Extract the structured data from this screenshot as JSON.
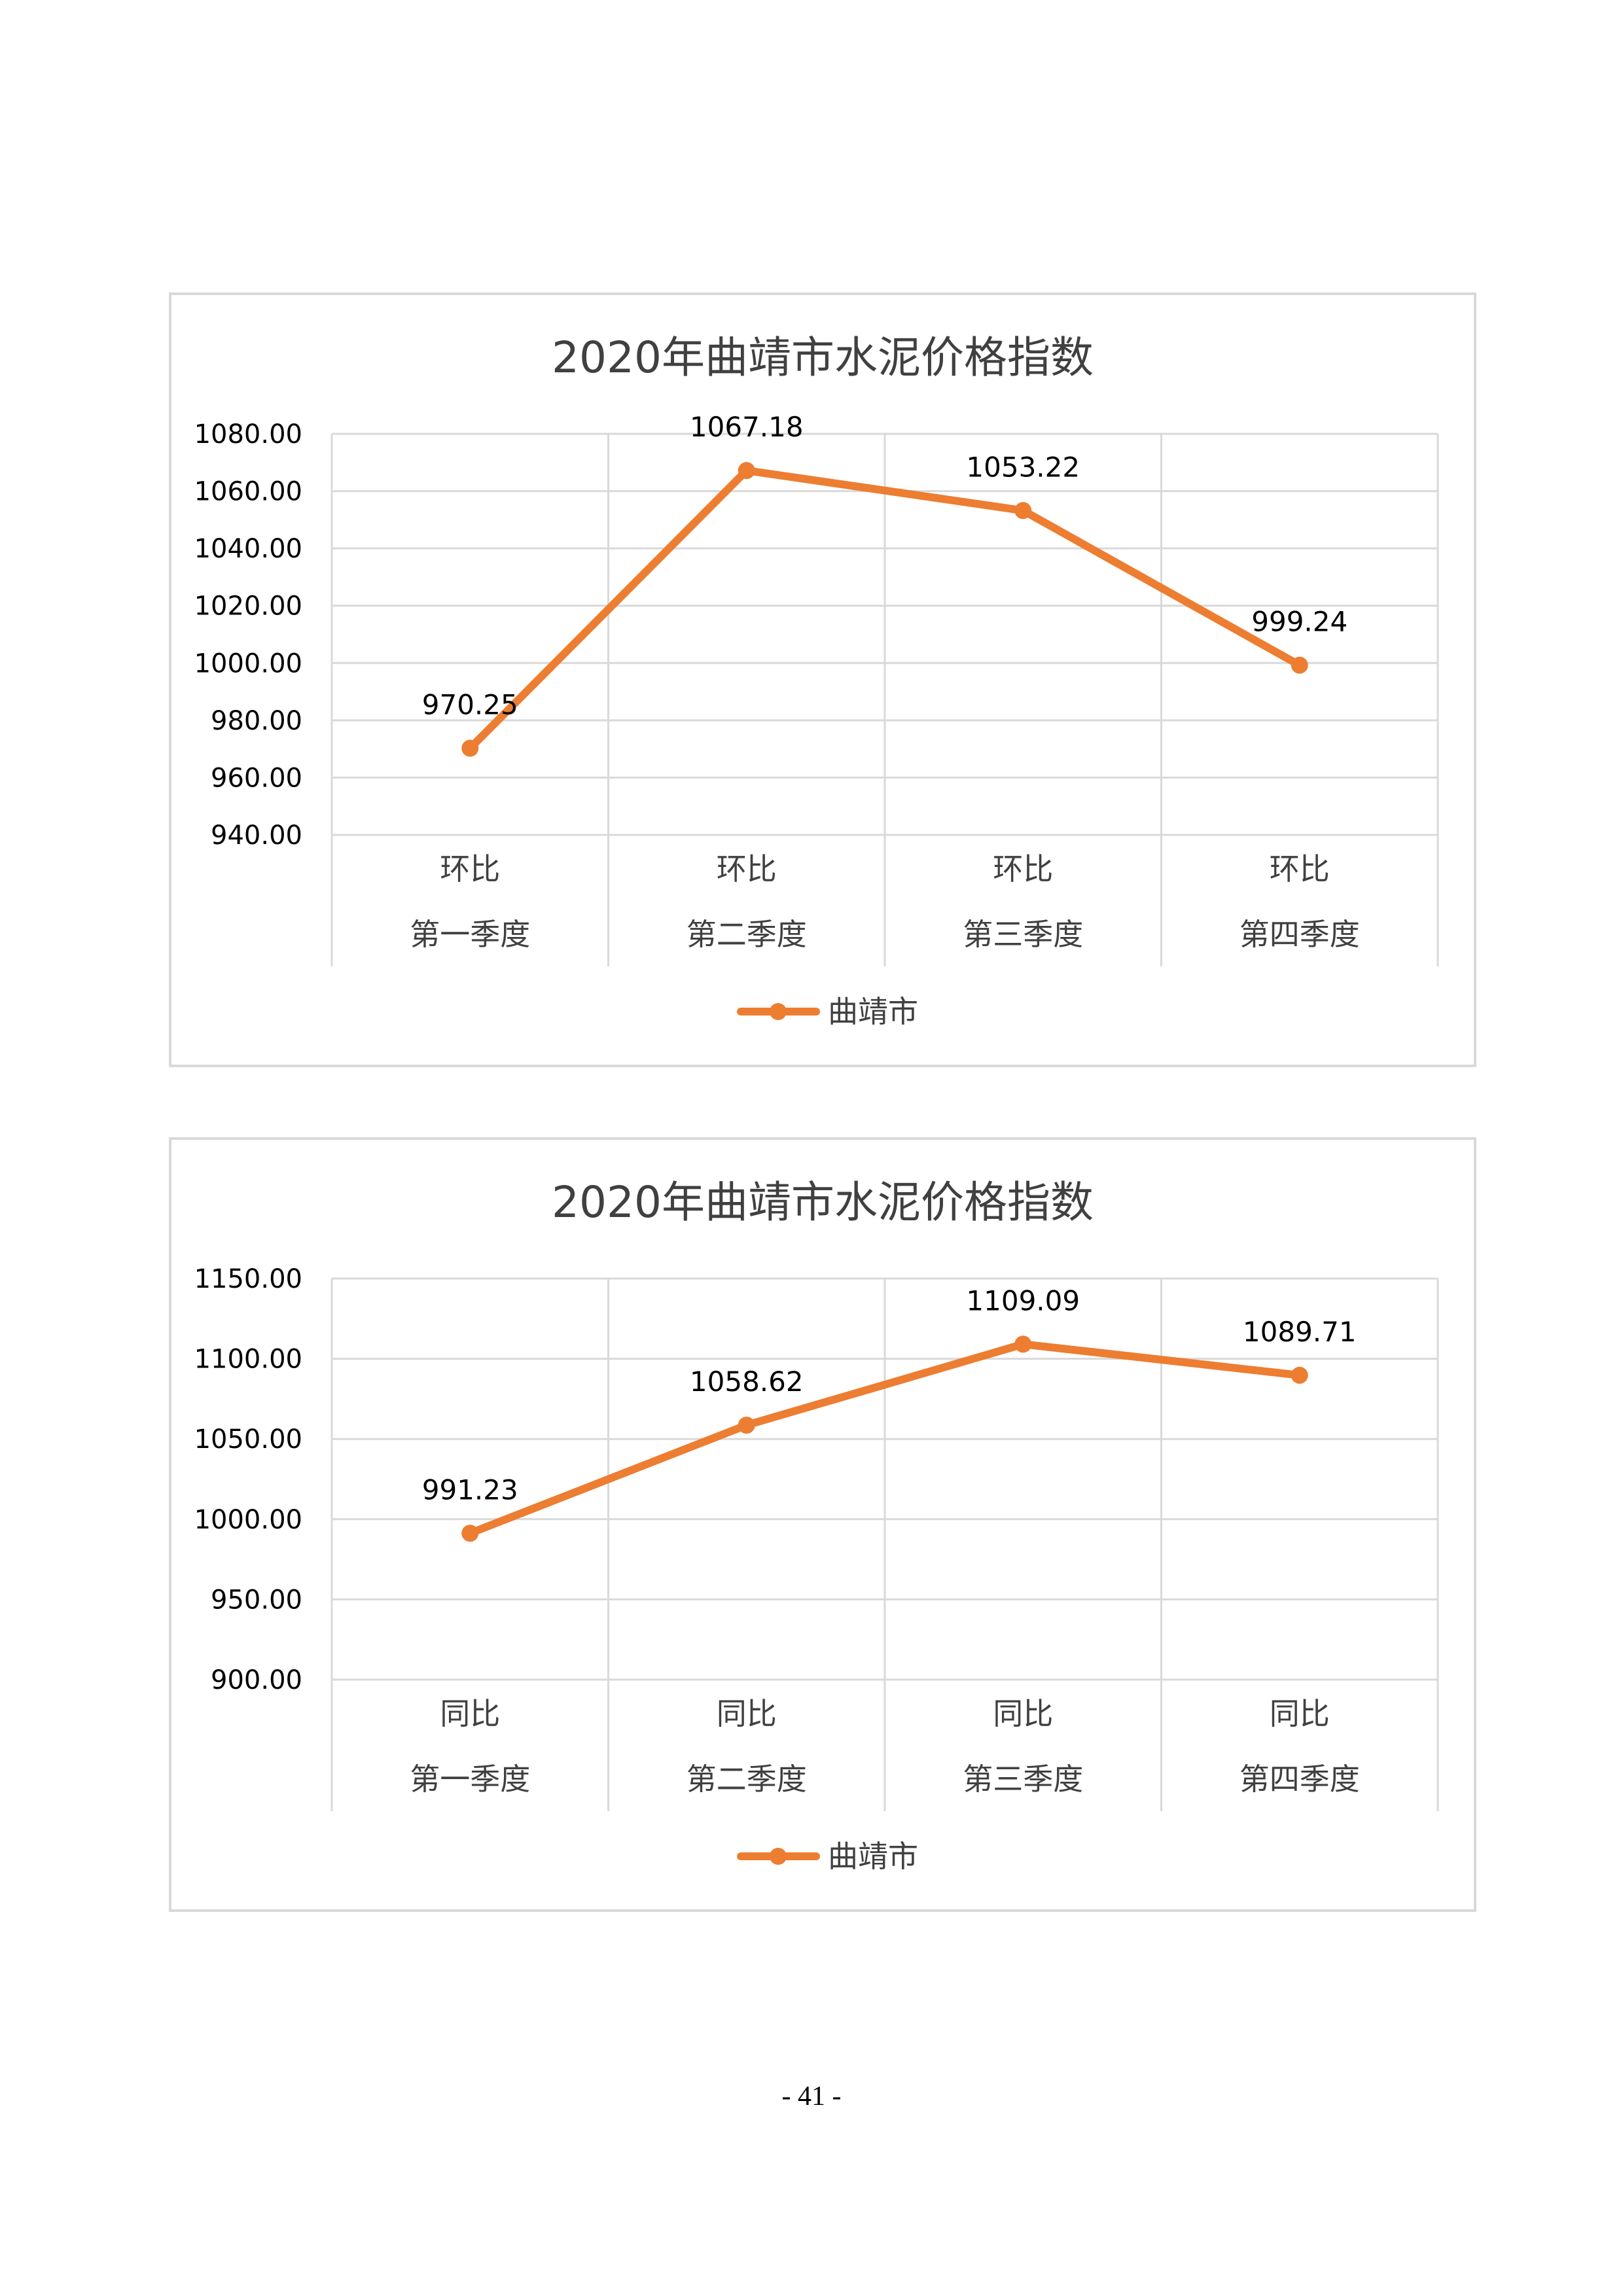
{
  "chart_data": [
    {
      "type": "line",
      "title": "2020年曲靖市水泥价格指数",
      "categories": [
        [
          "环比",
          "第一季度"
        ],
        [
          "环比",
          "第二季度"
        ],
        [
          "环比",
          "第三季度"
        ],
        [
          "环比",
          "第四季度"
        ]
      ],
      "series": [
        {
          "name": "曲靖市",
          "values": [
            970.25,
            1067.18,
            1053.22,
            999.24
          ]
        }
      ],
      "data_labels": [
        "970.25",
        "1067.18",
        "1053.22",
        "999.24"
      ],
      "yticks": [
        "940.00",
        "960.00",
        "980.00",
        "1000.00",
        "1020.00",
        "1040.00",
        "1060.00",
        "1080.00"
      ],
      "ylim": [
        940,
        1080
      ],
      "ystep": 20,
      "grid": true,
      "legend_position": "bottom",
      "color": "#ed7d31"
    },
    {
      "type": "line",
      "title": "2020年曲靖市水泥价格指数",
      "categories": [
        [
          "同比",
          "第一季度"
        ],
        [
          "同比",
          "第二季度"
        ],
        [
          "同比",
          "第三季度"
        ],
        [
          "同比",
          "第四季度"
        ]
      ],
      "series": [
        {
          "name": "曲靖市",
          "values": [
            991.23,
            1058.62,
            1109.09,
            1089.71
          ]
        }
      ],
      "data_labels": [
        "991.23",
        "1058.62",
        "1109.09",
        "1089.71"
      ],
      "yticks": [
        "900.00",
        "950.00",
        "1000.00",
        "1050.00",
        "1100.00",
        "1150.00"
      ],
      "ylim": [
        900,
        1150
      ],
      "ystep": 50,
      "grid": true,
      "legend_position": "bottom",
      "color": "#ed7d31"
    }
  ],
  "page": {
    "number": "- 41 -"
  }
}
